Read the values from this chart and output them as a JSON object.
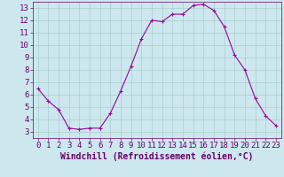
{
  "x": [
    0,
    1,
    2,
    3,
    4,
    5,
    6,
    7,
    8,
    9,
    10,
    11,
    12,
    13,
    14,
    15,
    16,
    17,
    18,
    19,
    20,
    21,
    22,
    23
  ],
  "y": [
    6.5,
    5.5,
    4.8,
    3.3,
    3.2,
    3.3,
    3.3,
    4.5,
    6.3,
    8.3,
    10.5,
    12.0,
    11.9,
    12.5,
    12.5,
    13.2,
    13.3,
    12.8,
    11.5,
    9.2,
    8.0,
    5.7,
    4.3,
    3.5
  ],
  "line_color": "#990099",
  "marker_color": "#990099",
  "bg_color": "#cce8ee",
  "grid_color": "#aacccc",
  "xlabel": "Windchill (Refroidissement éolien,°C)",
  "xlim": [
    -0.5,
    23.5
  ],
  "ylim": [
    2.5,
    13.5
  ],
  "yticks": [
    3,
    4,
    5,
    6,
    7,
    8,
    9,
    10,
    11,
    12,
    13
  ],
  "xticks": [
    0,
    1,
    2,
    3,
    4,
    5,
    6,
    7,
    8,
    9,
    10,
    11,
    12,
    13,
    14,
    15,
    16,
    17,
    18,
    19,
    20,
    21,
    22,
    23
  ],
  "xlabel_fontsize": 7,
  "tick_fontsize": 6.5,
  "line_width": 0.8,
  "marker_size": 2.5,
  "text_color": "#660066"
}
